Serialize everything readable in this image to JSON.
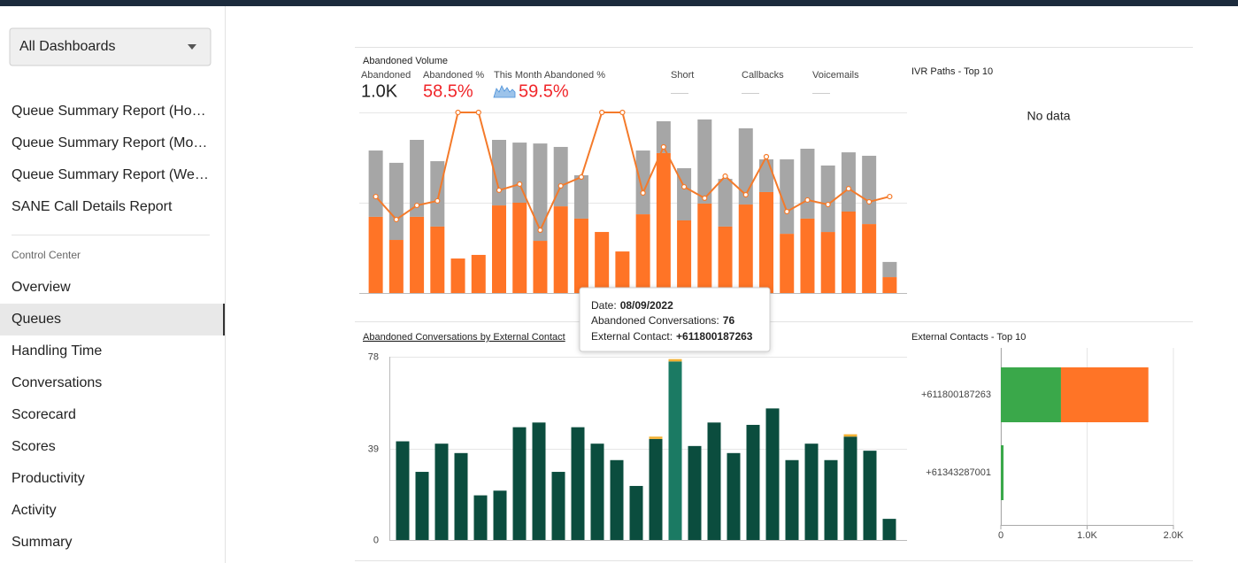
{
  "sidebar": {
    "dropdown": "All Dashboards",
    "reports": [
      "Queue Summary Report (Ho…",
      "Queue Summary Report (Mo…",
      "Queue Summary Report (We…",
      "SANE Call Details Report"
    ],
    "section": "Control Center",
    "items": [
      "Overview",
      "Queues",
      "Handling Time",
      "Conversations",
      "Scorecard",
      "Scores",
      "Productivity",
      "Activity",
      "Summary"
    ],
    "selected": 1
  },
  "stats": [
    {
      "label": "Abandoned",
      "value": "1.0K",
      "color": "#222222"
    },
    {
      "label": "Abandoned %",
      "value": "58.5%",
      "color": "#f0262a"
    },
    {
      "label": "This Month Abandoned %",
      "value": "59.5%",
      "color": "#f0262a"
    },
    {
      "label": "Short"
    },
    {
      "label": "Callbacks"
    },
    {
      "label": "Voicemails"
    }
  ],
  "ivr": {
    "title": "IVR Paths - Top 10",
    "message": "No data"
  },
  "tooltip": {
    "date_label": "Date:",
    "value_label": "Abandoned Conversations:",
    "contact_label": "External Contact:"
  },
  "chart_data": [
    {
      "type": "bar",
      "title": "Abandoned Volume",
      "stacked": true,
      "ylim": [
        0,
        100
      ],
      "y2lim": [
        0,
        100
      ],
      "yticks": [
        0,
        50,
        100
      ],
      "grid": true,
      "series": [
        {
          "color": "#ff7426",
          "values": [
            42.2,
            29.4,
            42.2,
            36.8,
            19.1,
            21.1,
            48.5,
            50.0,
            28.9,
            48.0,
            41.2,
            33.8,
            23.0,
            43.6,
            77.5,
            40.2,
            49.5,
            36.8,
            49.0,
            55.9,
            32.8,
            41.2,
            33.8,
            45.1,
            38.2,
            8.8
          ]
        },
        {
          "color": "#a6a6a6",
          "values": [
            36.7,
            42.7,
            42.6,
            36.2,
            0,
            0,
            36.3,
            33.3,
            53.9,
            32.9,
            24.0,
            0,
            0,
            35.3,
            17.6,
            28.9,
            46.6,
            26.4,
            42.2,
            18.1,
            41.2,
            38.7,
            36.8,
            32.8,
            37.8,
            8.4
          ]
        },
        {
          "type": "line",
          "axis": "y2",
          "color": "#f47a2a",
          "values": [
            53.4,
            40.7,
            48.5,
            51.0,
            100,
            100,
            56.9,
            60.3,
            34.8,
            59.3,
            64.2,
            100,
            100,
            55.4,
            80.9,
            58.8,
            52.5,
            64.7,
            54.4,
            75.5,
            45.1,
            51.5,
            49.0,
            57.8,
            50.5,
            53.4
          ]
        }
      ]
    },
    {
      "type": "bar",
      "title": "Abandoned Conversations by External Contact",
      "stacked": true,
      "ylim": [
        0,
        78
      ],
      "yticks": [
        0,
        39,
        78
      ],
      "grid": true,
      "hover_color": "#1b7a63",
      "categories": [
        null,
        null,
        null,
        null,
        null,
        null,
        null,
        null,
        null,
        null,
        null,
        null,
        null,
        null,
        "08/09/2022",
        null,
        null,
        null,
        null,
        null,
        null,
        null,
        null,
        null,
        null,
        null
      ],
      "series": [
        {
          "color": "#0b4d3e",
          "values": [
            42,
            29,
            41,
            37,
            19,
            21,
            48,
            50,
            29,
            48,
            41,
            34,
            23,
            43,
            76,
            40,
            50,
            37,
            49,
            56,
            34,
            41,
            34,
            44,
            38,
            9
          ]
        },
        {
          "color": "#f2b134",
          "values": [
            0,
            0,
            0,
            0,
            0,
            0,
            0,
            0,
            0,
            0,
            0,
            0,
            0,
            1,
            1,
            0,
            0,
            0,
            0,
            0,
            0,
            0,
            0,
            1,
            0,
            0
          ]
        }
      ]
    },
    {
      "type": "bar",
      "orientation": "horizontal",
      "stacked": true,
      "title": "External Contacts - Top 10",
      "categories": [
        "+611800187263",
        "+61343287001"
      ],
      "xlim": [
        0,
        2000
      ],
      "xticks": [
        0,
        {
          "value": 1000,
          "label": "1.0K"
        },
        {
          "value": 2000,
          "label": "2.0K"
        }
      ],
      "grid": true,
      "series": [
        {
          "color": "#3aa84a",
          "values": [
            697,
            31
          ]
        },
        {
          "color": "#ff7426",
          "values": [
            1013,
            0
          ]
        }
      ]
    }
  ]
}
